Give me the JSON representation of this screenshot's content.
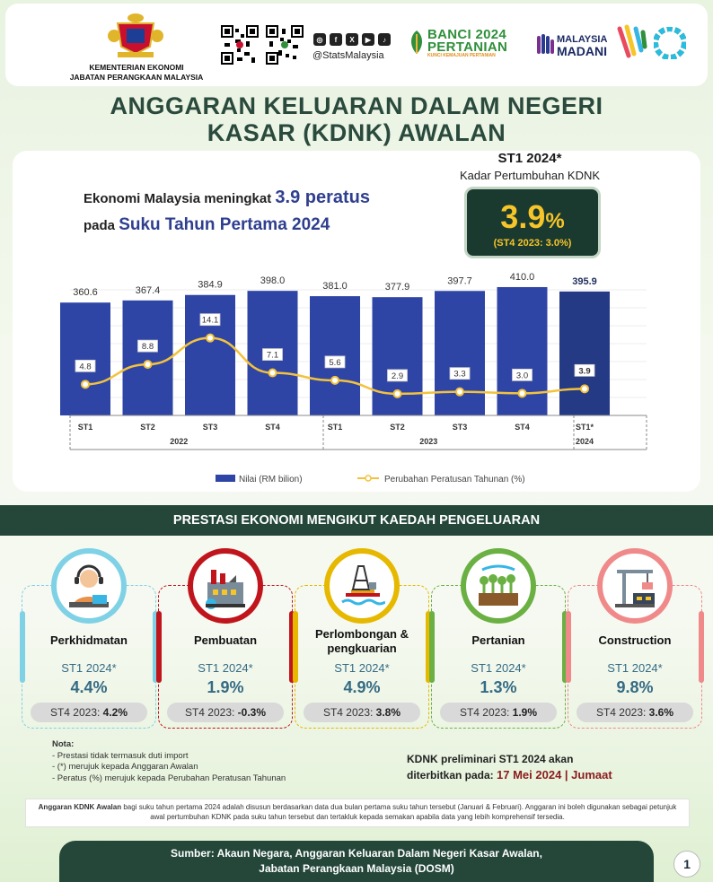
{
  "header": {
    "ministry_line1": "KEMENTERIAN EKONOMI",
    "ministry_line2": "JABATAN PERANGKAAN MALAYSIA",
    "social_handle": "@StatsMalaysia",
    "banci_line1": "BANCI 2024",
    "banci_line2": "PERTANIAN",
    "banci_tagline": "KUNCI KEMAJUAN PERTANIAN",
    "madani_line1": "MALAYSIA",
    "madani_line2": "MADANI"
  },
  "title": {
    "line1": "ANGGARAN KELUARAN DALAM NEGERI",
    "line2": "KASAR (KDNK) AWALAN"
  },
  "headline": {
    "pre1": "Ekonomi Malaysia meningkat",
    "value": "3.9 peratus",
    "pre2": "pada",
    "period": "Suku Tahun Pertama 2024"
  },
  "highlight": {
    "period": "ST1 2024*",
    "label": "Kadar Pertumbuhan KDNK",
    "value": "3.9",
    "unit": "%",
    "previous": "(ST4 2023: 3.0%)"
  },
  "chart_data": {
    "type": "bar",
    "categories": [
      "ST1",
      "ST2",
      "ST3",
      "ST4",
      "ST1",
      "ST2",
      "ST3",
      "ST4",
      "ST1*"
    ],
    "years": [
      {
        "label": "2022",
        "span": [
          0,
          3
        ]
      },
      {
        "label": "2023",
        "span": [
          4,
          7
        ]
      },
      {
        "label": "2024",
        "span": [
          8,
          8
        ]
      }
    ],
    "series": [
      {
        "name": "Nilai (RM bilion)",
        "type": "bar",
        "values": [
          360.6,
          367.4,
          384.9,
          398.0,
          381.0,
          377.9,
          397.7,
          410.0,
          395.9
        ],
        "labels": [
          "360.6",
          "367.4",
          "384.9",
          "398.0",
          "381.0",
          "377.9",
          "397.7",
          "410.0",
          "395.9"
        ]
      },
      {
        "name": "Perubahan Peratusan Tahunan  (%)",
        "type": "line",
        "values": [
          4.8,
          8.8,
          14.1,
          7.1,
          5.6,
          2.9,
          3.3,
          3.0,
          3.9
        ],
        "labels": [
          "4.8",
          "8.8",
          "14.1",
          "7.1",
          "5.6",
          "2.9",
          "3.3",
          "3.0",
          "3.9"
        ]
      }
    ],
    "colors": {
      "bar": "#2f45a6",
      "bar_highlight": "#253a85",
      "line": "#f3c23d"
    },
    "legend_placement": "bottom"
  },
  "section": {
    "title": "PRESTASI EKONOMI MENGIKUT KAEDAH PENGELUARAN"
  },
  "sectors": [
    {
      "name": "Perkhidmatan",
      "period": "ST1 2024*",
      "value": "4.4%",
      "prev_label": "ST4 2023:",
      "prev_value": "4.2%",
      "color": "#7fd1e6",
      "icon": "customer-service-icon"
    },
    {
      "name": "Pembuatan",
      "period": "ST1 2024*",
      "value": "1.9%",
      "prev_label": "ST4 2023:",
      "prev_value": "-0.3%",
      "color": "#c0151c",
      "icon": "factory-icon"
    },
    {
      "name": "Perlombongan & pengkuarian",
      "period": "ST1 2024*",
      "value": "4.9%",
      "prev_label": "ST4 2023:",
      "prev_value": "3.8%",
      "color": "#e6b800",
      "icon": "oil-rig-icon"
    },
    {
      "name": "Pertanian",
      "period": "ST1 2024*",
      "value": "1.3%",
      "prev_label": "ST4 2023:",
      "prev_value": "1.9%",
      "color": "#6ab042",
      "icon": "farm-icon"
    },
    {
      "name": "Construction",
      "period": "ST1 2024*",
      "value": "9.8%",
      "prev_label": "ST4 2023:",
      "prev_value": "3.6%",
      "color": "#f08a8a",
      "icon": "crane-icon"
    }
  ],
  "notes": {
    "title": "Nota:",
    "items": [
      "- Prestasi tidak termasuk duti import",
      "- (*) merujuk kepada Anggaran Awalan",
      "- Peratus (%) merujuk kepada Perubahan Peratusan Tahunan"
    ]
  },
  "release": {
    "line1": "KDNK preliminari ST1 2024 akan",
    "line2_pre": "diterbitkan pada:",
    "date": "17 Mei 2024 | Jumaat"
  },
  "disclaimer": {
    "bold": "Anggaran KDNK Awalan",
    "text": " bagi suku tahun pertama 2024 adalah disusun berdasarkan data dua bulan pertama suku tahun tersebut (Januari & Februari). Anggaran ini boleh digunakan sebagai petunjuk awal pertumbuhan KDNK pada suku tahun tersebut dan tertakluk kepada semakan apabila data yang lebih komprehensif tersedia."
  },
  "footer": {
    "line1": "Sumber: Akaun Negara, Anggaran Keluaran Dalam Negeri Kasar Awalan,",
    "line2": "Jabatan Perangkaan Malaysia (DOSM)"
  },
  "page_number": "1"
}
